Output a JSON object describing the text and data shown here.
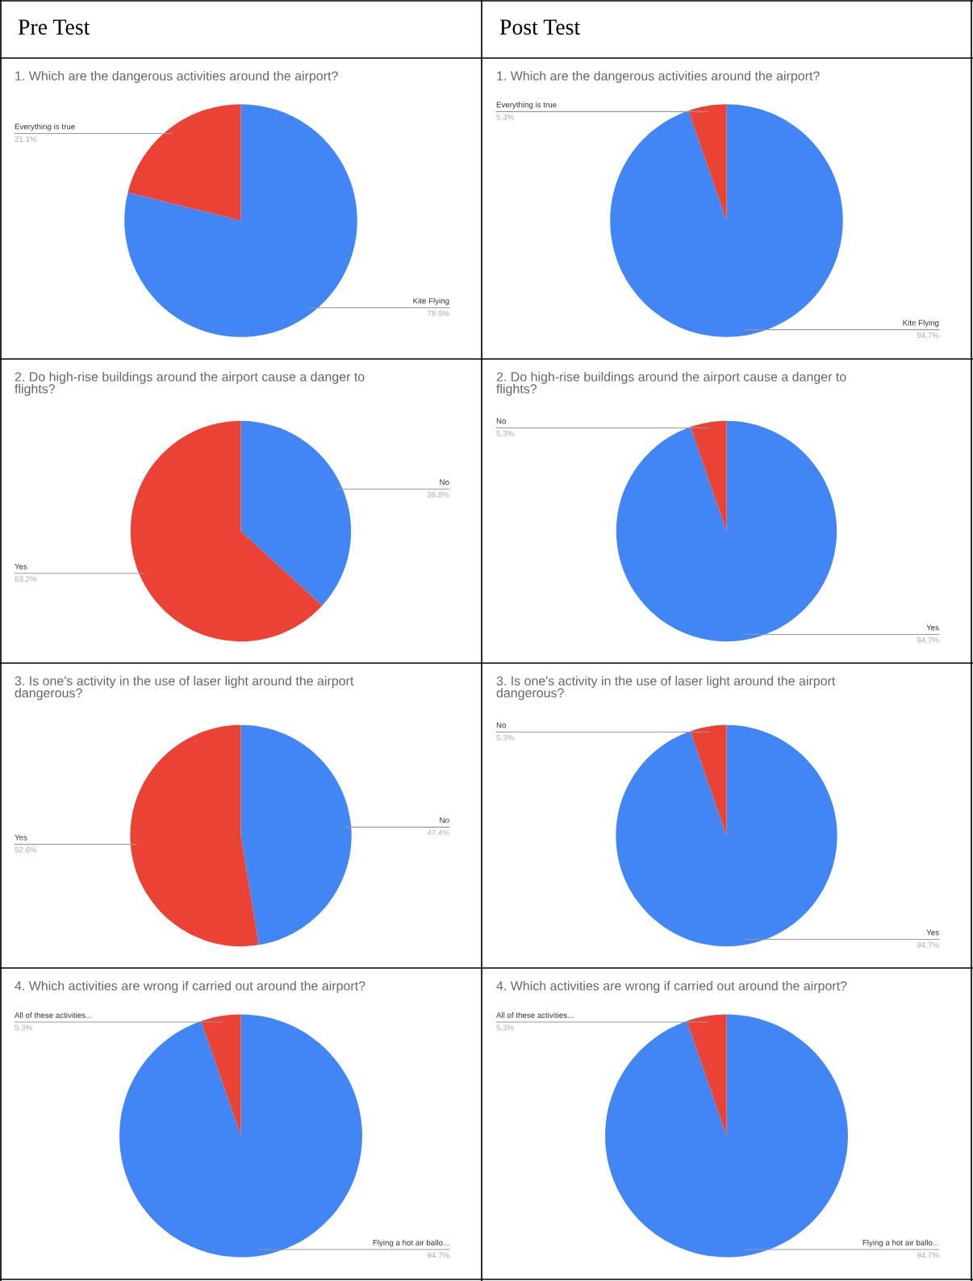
{
  "chart_data": [
    {
      "type": "pie",
      "title": "1. Which are the dangerous activities around the airport?",
      "annotations": [
        "Pre Test"
      ],
      "categories": [
        "Kite Flying",
        "Everything is true"
      ],
      "values": [
        78.9,
        21.1
      ],
      "colors": [
        "#4285f4",
        "#ea4335"
      ],
      "value_labels": [
        "78.9%",
        "21.1%"
      ],
      "legend": false
    },
    {
      "type": "pie",
      "title": "1. Which are the dangerous activities around the airport?",
      "annotations": [
        "Post Test"
      ],
      "categories": [
        "Kite Flying",
        "Everything is true"
      ],
      "values": [
        94.7,
        5.3
      ],
      "colors": [
        "#4285f4",
        "#ea4335"
      ],
      "value_labels": [
        "94.7%",
        "5.3%"
      ],
      "legend": false
    },
    {
      "type": "pie",
      "title": "2. Do high-rise buildings around the airport cause a danger to\nflights?",
      "categories": [
        "No",
        "Yes"
      ],
      "values": [
        36.8,
        63.2
      ],
      "colors": [
        "#4285f4",
        "#ea4335"
      ],
      "value_labels": [
        "36.8%",
        "63.2%"
      ],
      "legend": false
    },
    {
      "type": "pie",
      "title": "2. Do high-rise buildings around the airport cause a danger to\nflights?",
      "categories": [
        "Yes",
        "No"
      ],
      "values": [
        94.7,
        5.3
      ],
      "colors": [
        "#4285f4",
        "#ea4335"
      ],
      "value_labels": [
        "94.7%",
        "5.3%"
      ],
      "legend": false
    },
    {
      "type": "pie",
      "title": "3. Is one's activity in the use of laser light around the airport\ndangerous?",
      "categories": [
        "No",
        "Yes"
      ],
      "values": [
        47.4,
        52.6
      ],
      "colors": [
        "#4285f4",
        "#ea4335"
      ],
      "value_labels": [
        "47.4%",
        "52.6%"
      ],
      "legend": false
    },
    {
      "type": "pie",
      "title": "3. Is one's activity in the use of laser light around the airport\ndangerous?",
      "categories": [
        "Yes",
        "No"
      ],
      "values": [
        94.7,
        5.3
      ],
      "colors": [
        "#4285f4",
        "#ea4335"
      ],
      "value_labels": [
        "94.7%",
        "5.3%"
      ],
      "legend": false
    },
    {
      "type": "pie",
      "title": "4. Which activities are wrong if carried out around the airport?",
      "categories": [
        "Flying a hot air ballo...",
        "All of these activities..."
      ],
      "values": [
        94.7,
        5.3
      ],
      "colors": [
        "#4285f4",
        "#ea4335"
      ],
      "value_labels": [
        "94.7%",
        "5.3%"
      ],
      "legend": false
    },
    {
      "type": "pie",
      "title": "4. Which activities are wrong if carried out around the airport?",
      "categories": [
        "Flying a hot air ballo...",
        "All of these activities..."
      ],
      "values": [
        94.7,
        5.3
      ],
      "colors": [
        "#4285f4",
        "#ea4335"
      ],
      "value_labels": [
        "94.7%",
        "5.3%"
      ],
      "legend": false
    }
  ]
}
